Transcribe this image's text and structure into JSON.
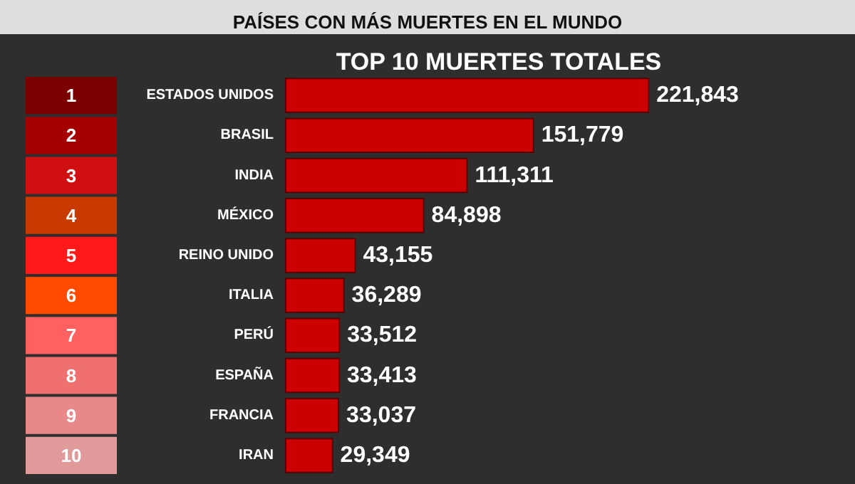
{
  "chart_data": {
    "type": "bar",
    "orientation": "horizontal",
    "title": "PAÍSES CON MÁS MUERTES EN EL MUNDO",
    "subtitle": "TOP 10 MUERTES TOTALES",
    "categories": [
      "ESTADOS UNIDOS",
      "BRASIL",
      "INDIA",
      "MÉXICO",
      "REINO UNIDO",
      "ITALIA",
      "PERÚ",
      "ESPAÑA",
      "FRANCIA",
      "IRAN"
    ],
    "values": [
      221843,
      151779,
      111311,
      84898,
      43155,
      36289,
      33512,
      33413,
      33037,
      29349
    ],
    "value_labels": [
      "221,843",
      "151,779",
      "111,311",
      "84,898",
      "43,155",
      "36,289",
      "33,512",
      "33,413",
      "33,037",
      "29,349"
    ],
    "color": "#cc0000",
    "annotations": [
      "1",
      "2",
      "3",
      "4",
      "5",
      "6",
      "7",
      "8",
      "9",
      "10"
    ]
  }
}
